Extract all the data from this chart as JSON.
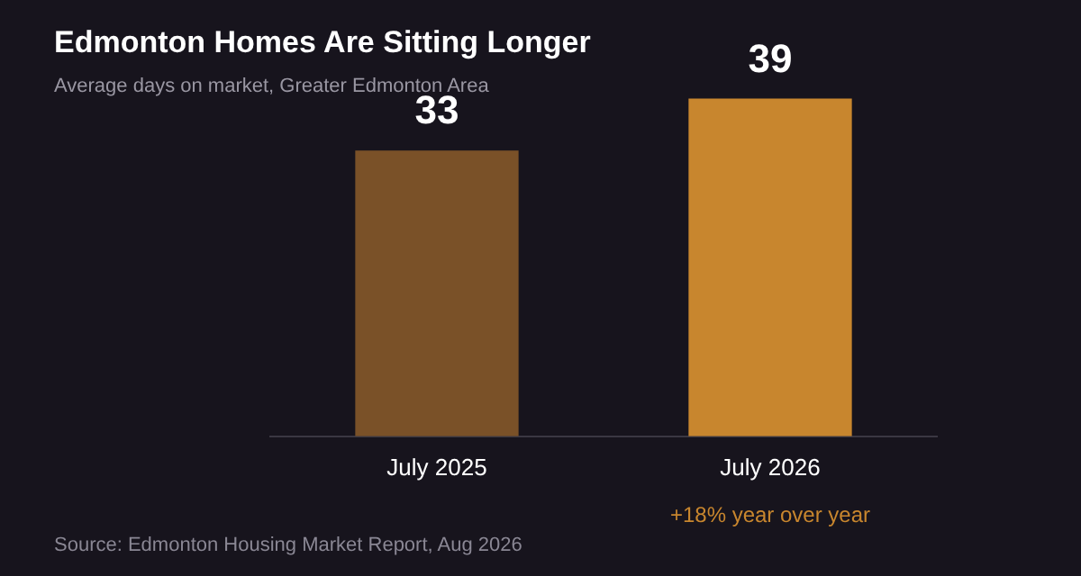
{
  "chart_data": {
    "type": "bar",
    "title": "Edmonton Homes Are Sitting Longer",
    "subtitle": "Average days on market, Greater Edmonton Area",
    "categories": [
      "July 2025",
      "July 2026"
    ],
    "values": [
      33,
      39
    ],
    "colors": [
      "#7a5128",
      "#c8862e"
    ],
    "data_labels": true,
    "grid": false,
    "legend": false,
    "annotations": [
      "+18% year over year",
      "Source: Edmonton Housing Market Report, Aug 2026"
    ]
  }
}
